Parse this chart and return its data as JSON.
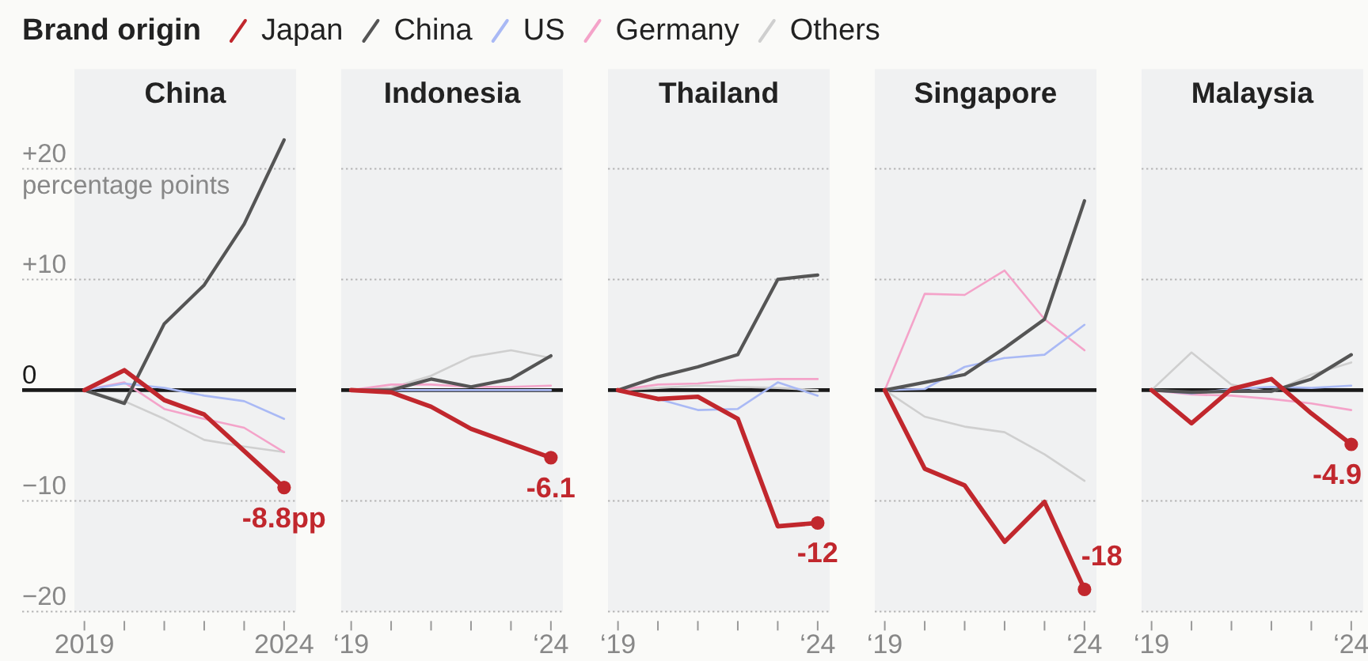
{
  "chart_data": [
    {
      "type": "line",
      "title": "China",
      "legend": "top",
      "legend_title": "Brand origin",
      "ylabel": "percentage points",
      "grid": "y",
      "categories": [
        "2019",
        null,
        null,
        null,
        null,
        "2024"
      ],
      "ylim": [
        -20,
        29
      ],
      "yticks": [
        {
          "value": -20,
          "label": "−20"
        },
        {
          "value": -10,
          "label": "−10"
        },
        0,
        {
          "value": 10,
          "label": "+10"
        },
        {
          "value": 20,
          "label": "+20"
        }
      ],
      "ref_lines": [
        {
          "axis": "y",
          "value": 0,
          "color": "#1a1a1a"
        }
      ],
      "series": [
        {
          "name": "Japan",
          "color": "#c1272d",
          "values": [
            0,
            1.8,
            -0.9,
            -2.2,
            -5.5,
            -8.8
          ]
        },
        {
          "name": "China",
          "color": "#555555",
          "values": [
            0,
            -1.2,
            6.0,
            9.5,
            15,
            22.6
          ]
        },
        {
          "name": "US",
          "color": "#a9b9f5",
          "values": [
            0,
            0.6,
            0.2,
            -0.5,
            -1,
            -2.6
          ]
        },
        {
          "name": "Germany",
          "color": "#f4a3c9",
          "values": [
            0,
            0.7,
            -1.7,
            -2.6,
            -3.4,
            -5.6
          ]
        },
        {
          "name": "Others",
          "color": "#cfcfcf",
          "values": [
            0,
            -1.0,
            -2.6,
            -4.5,
            -5.1,
            -5.6
          ]
        },
        {
          "type": "scatter",
          "color": "#c1272d",
          "values": [
            null,
            null,
            null,
            null,
            null,
            -8.8
          ],
          "value_labels": [
            null,
            null,
            null,
            null,
            null,
            "-8.8pp"
          ]
        }
      ]
    },
    {
      "type": "line",
      "title": "Indonesia",
      "tick_labels": "x",
      "grid": "y",
      "categories": [
        "‘19",
        null,
        null,
        null,
        null,
        "‘24"
      ],
      "ylim": [
        -20,
        29
      ],
      "yticks": [
        -20,
        -10,
        0,
        10,
        20
      ],
      "ref_lines": [
        {
          "axis": "y",
          "value": 0,
          "color": "#1a1a1a"
        }
      ],
      "series": [
        {
          "color": "#c1272d",
          "values": [
            0,
            -0.2,
            -1.5,
            -3.5,
            -4.8,
            -6.1
          ]
        },
        {
          "color": "#555555",
          "values": [
            0,
            0,
            1.0,
            0.3,
            1.0,
            3.1
          ]
        },
        {
          "color": "#a9b9f5",
          "values": [
            0,
            0,
            0,
            0,
            0,
            0
          ]
        },
        {
          "color": "#f4a3c9",
          "values": [
            0,
            0.5,
            0.5,
            0.3,
            0.3,
            0.4
          ]
        },
        {
          "color": "#cfcfcf",
          "values": [
            0,
            0.2,
            1.3,
            3.0,
            3.6,
            2.9
          ]
        },
        {
          "type": "scatter",
          "color": "#c1272d",
          "values": [
            null,
            null,
            null,
            null,
            null,
            -6.1
          ],
          "value_labels": [
            null,
            null,
            null,
            null,
            null,
            "-6.1"
          ]
        }
      ]
    },
    {
      "type": "line",
      "title": "Thailand",
      "tick_labels": "x",
      "grid": "y",
      "categories": [
        "‘19",
        null,
        null,
        null,
        null,
        "‘24"
      ],
      "ylim": [
        -20,
        29
      ],
      "yticks": [
        -20,
        -10,
        0,
        10,
        20
      ],
      "ref_lines": [
        {
          "axis": "y",
          "value": 0,
          "color": "#1a1a1a"
        }
      ],
      "series": [
        {
          "color": "#c1272d",
          "values": [
            0,
            -0.8,
            -0.6,
            -2.6,
            -12.3,
            -12
          ]
        },
        {
          "color": "#555555",
          "values": [
            0,
            1.2,
            2.1,
            3.2,
            10.0,
            10.4
          ]
        },
        {
          "color": "#a9b9f5",
          "values": [
            0,
            -0.8,
            -1.8,
            -1.7,
            0.7,
            -0.5
          ]
        },
        {
          "color": "#f4a3c9",
          "values": [
            0,
            0.5,
            0.6,
            0.9,
            1.0,
            1.0
          ]
        },
        {
          "color": "#cfcfcf",
          "values": [
            0,
            0.2,
            0.4,
            0.3,
            0.2,
            0
          ]
        },
        {
          "type": "scatter",
          "color": "#c1272d",
          "values": [
            null,
            null,
            null,
            null,
            null,
            -12
          ],
          "value_labels": [
            null,
            null,
            null,
            null,
            null,
            "-12"
          ]
        }
      ]
    },
    {
      "type": "line",
      "title": "Singapore",
      "tick_labels": "x",
      "grid": "y",
      "categories": [
        "‘19",
        null,
        null,
        null,
        null,
        "‘24"
      ],
      "ylim": [
        -20,
        29
      ],
      "yticks": [
        -20,
        -10,
        0,
        10,
        20
      ],
      "ref_lines": [
        {
          "axis": "y",
          "value": 0,
          "color": "#1a1a1a"
        }
      ],
      "series": [
        {
          "color": "#c1272d",
          "values": [
            0,
            -7.1,
            -8.6,
            -13.7,
            -10.1,
            -18
          ]
        },
        {
          "color": "#555555",
          "values": [
            0,
            0.7,
            1.4,
            3.8,
            6.4,
            17.1
          ]
        },
        {
          "color": "#a9b9f5",
          "values": [
            0,
            0.1,
            2.1,
            2.9,
            3.2,
            5.9
          ]
        },
        {
          "color": "#f4a3c9",
          "values": [
            0,
            8.7,
            8.6,
            10.8,
            6.4,
            3.6
          ]
        },
        {
          "color": "#cfcfcf",
          "values": [
            0,
            -2.4,
            -3.3,
            -3.8,
            -5.8,
            -8.2
          ]
        },
        {
          "type": "scatter",
          "color": "#c1272d",
          "values": [
            null,
            null,
            null,
            null,
            null,
            -18
          ],
          "value_labels": [
            null,
            null,
            null,
            null,
            null,
            "-18"
          ]
        }
      ]
    },
    {
      "type": "line",
      "title": "Malaysia",
      "tick_labels": "x",
      "grid": "y",
      "categories": [
        "‘19",
        null,
        null,
        null,
        null,
        "‘24"
      ],
      "ylim": [
        -20,
        29
      ],
      "yticks": [
        -20,
        -10,
        0,
        10,
        20
      ],
      "ref_lines": [
        {
          "axis": "y",
          "value": 0,
          "color": "#1a1a1a"
        }
      ],
      "series": [
        {
          "color": "#c1272d",
          "values": [
            0,
            -3.0,
            0.1,
            1.0,
            -2.1,
            -4.9
          ]
        },
        {
          "color": "#555555",
          "values": [
            0,
            -0.2,
            -0.1,
            -0.1,
            1.0,
            3.2
          ]
        },
        {
          "color": "#a9b9f5",
          "values": [
            0,
            -0.3,
            0.1,
            0.3,
            0.2,
            0.4
          ]
        },
        {
          "color": "#f4a3c9",
          "values": [
            0,
            -0.4,
            -0.5,
            -0.8,
            -1.2,
            -1.8
          ]
        },
        {
          "color": "#cfcfcf",
          "values": [
            0,
            3.4,
            0.5,
            -0.2,
            1.4,
            2.5
          ]
        },
        {
          "type": "scatter",
          "color": "#c1272d",
          "values": [
            null,
            null,
            null,
            null,
            null,
            -4.9
          ],
          "value_labels": [
            null,
            null,
            null,
            null,
            null,
            "-4.9"
          ]
        }
      ]
    }
  ]
}
